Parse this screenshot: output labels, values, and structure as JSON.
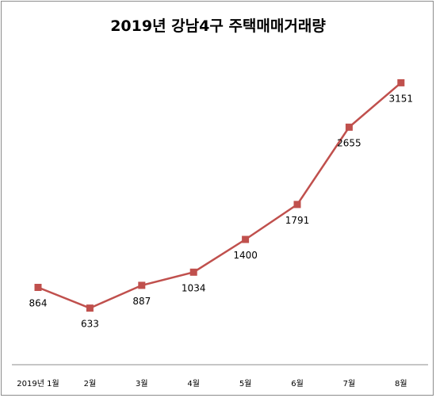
{
  "chart_data": {
    "type": "line",
    "title": "2019년 강남4구 주택매매거래량",
    "categories": [
      "2019년 1월",
      "2월",
      "3월",
      "4월",
      "5월",
      "6월",
      "7월",
      "8월"
    ],
    "series": [
      {
        "values": [
          864,
          633,
          887,
          1034,
          1400,
          1791,
          2655,
          3151
        ]
      }
    ],
    "ylim": [
      0,
      3500
    ],
    "grid": false,
    "legend": "none",
    "colors": {
      "line": "#c0504d",
      "marker": "#c0504d",
      "axis": "#8c8c8c"
    }
  }
}
